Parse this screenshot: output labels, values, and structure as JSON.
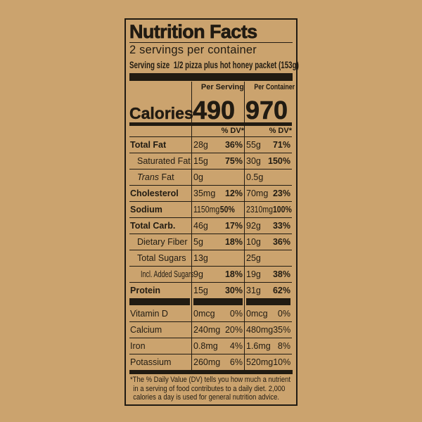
{
  "colors": {
    "background": "#cba36e",
    "ink": "#211b12"
  },
  "label": {
    "title": "Nutrition Facts",
    "servings_per_container": "2 servings per container",
    "serving_size_label": "Serving size",
    "serving_size_value": "1/2 pizza plus hot honey packet (153g)",
    "calories": {
      "label": "Calories",
      "per_serving_header": "Per Serving",
      "per_container_header": "Per Container",
      "per_serving_value": "490",
      "per_container_value": "970",
      "dv_header": "% DV*"
    },
    "rows": [
      {
        "label": "Total Fat",
        "bold": true,
        "indent": 0,
        "s": [
          "28g",
          "36%"
        ],
        "c": [
          "55g",
          "71%"
        ]
      },
      {
        "label": "Saturated Fat",
        "bold": false,
        "indent": 1,
        "s": [
          "15g",
          "75%"
        ],
        "c": [
          "30g",
          "150%"
        ]
      },
      {
        "label": "Trans Fat",
        "italic": "Trans",
        "bold": false,
        "indent": 1,
        "s": [
          "0g",
          ""
        ],
        "c": [
          "0.5g",
          ""
        ]
      },
      {
        "label": "Cholesterol",
        "bold": true,
        "indent": 0,
        "s": [
          "35mg",
          "12%"
        ],
        "c": [
          "70mg",
          "23%"
        ]
      },
      {
        "label": "Sodium",
        "bold": true,
        "indent": 0,
        "condS": true,
        "condC": true,
        "s": [
          "1150mg",
          "50%"
        ],
        "c": [
          "2310mg",
          "100%"
        ]
      },
      {
        "label": "Total Carb.",
        "bold": true,
        "indent": 0,
        "s": [
          "46g",
          "17%"
        ],
        "c": [
          "92g",
          "33%"
        ]
      },
      {
        "label": "Dietary Fiber",
        "bold": false,
        "indent": 1,
        "s": [
          "5g",
          "18%"
        ],
        "c": [
          "10g",
          "36%"
        ]
      },
      {
        "label": "Total Sugars",
        "bold": false,
        "indent": 1,
        "s": [
          "13g",
          ""
        ],
        "c": [
          "25g",
          ""
        ]
      },
      {
        "label": "Incl. Added Sugars",
        "bold": false,
        "indent": 2,
        "cond": true,
        "s": [
          "9g",
          "18%"
        ],
        "c": [
          "19g",
          "38%"
        ]
      },
      {
        "label": "Protein",
        "bold": true,
        "indent": 0,
        "s": [
          "15g",
          "30%"
        ],
        "c": [
          "31g",
          "62%"
        ]
      }
    ],
    "vitamins": [
      {
        "label": "Vitamin D",
        "s": [
          "0mcg",
          "0%"
        ],
        "c": [
          "0mcg",
          "0%"
        ]
      },
      {
        "label": "Calcium",
        "s": [
          "240mg",
          "20%"
        ],
        "c": [
          "480mg",
          "35%"
        ]
      },
      {
        "label": "Iron",
        "s": [
          "0.8mg",
          "4%"
        ],
        "c": [
          "1.6mg",
          "8%"
        ]
      },
      {
        "label": "Potassium",
        "s": [
          "260mg",
          "6%"
        ],
        "c": [
          "520mg",
          "10%"
        ]
      }
    ],
    "footnote_lines": [
      "*The % Daily Value (DV) tells you how much a nutrient",
      "in a serving of food contributes to a daily diet. 2,000",
      "calories a day is used for general nutrition advice."
    ]
  }
}
